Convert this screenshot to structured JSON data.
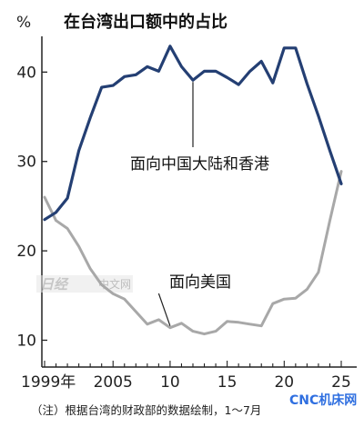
{
  "chart_data": {
    "type": "line",
    "title": "在台湾出口额中的占比",
    "unit_label": "%",
    "x": [
      1999,
      2000,
      2001,
      2002,
      2003,
      2004,
      2005,
      2006,
      2007,
      2008,
      2009,
      2010,
      2011,
      2012,
      2013,
      2014,
      2015,
      2016,
      2017,
      2018,
      2019,
      2020,
      2021,
      2022,
      2023,
      2024,
      2025
    ],
    "x_tick_labels": [
      "1999年",
      "2005",
      "10",
      "15",
      "20",
      "25"
    ],
    "x_tick_values": [
      1999,
      2005,
      2010,
      2015,
      2020,
      2025
    ],
    "y_ticks": [
      10,
      20,
      30,
      40
    ],
    "ylim": [
      7,
      44
    ],
    "xlim": [
      1999,
      2025
    ],
    "series": [
      {
        "name": "面向中国大陆和香港",
        "color": "#243f73",
        "values": [
          23.5,
          24.3,
          25.9,
          31.2,
          34.9,
          38.3,
          38.5,
          39.5,
          39.7,
          40.6,
          40.1,
          42.9,
          40.6,
          39.1,
          40.1,
          40.1,
          39.4,
          38.6,
          40.1,
          41.2,
          38.8,
          42.7,
          42.7,
          38.7,
          35.1,
          31.2,
          27.5
        ]
      },
      {
        "name": "面向美国",
        "color": "#a8a8a8",
        "values": [
          26.0,
          23.4,
          22.5,
          20.5,
          18.0,
          16.2,
          15.2,
          14.6,
          13.2,
          11.8,
          12.3,
          11.4,
          11.9,
          11.0,
          10.7,
          11.0,
          12.1,
          12.0,
          11.8,
          11.6,
          14.1,
          14.6,
          14.7,
          15.7,
          17.6,
          23.4,
          28.9
        ]
      }
    ]
  },
  "note": "（注）根据台湾的财政部的数据绘制，1～7月",
  "watermark": {
    "left_mark": "日经",
    "text": "中文网"
  },
  "logo": "CNC机床网",
  "colors": {
    "china": "#243f73",
    "us": "#a8a8a8",
    "logo": "#2f6fe0",
    "axis": "#222222"
  }
}
